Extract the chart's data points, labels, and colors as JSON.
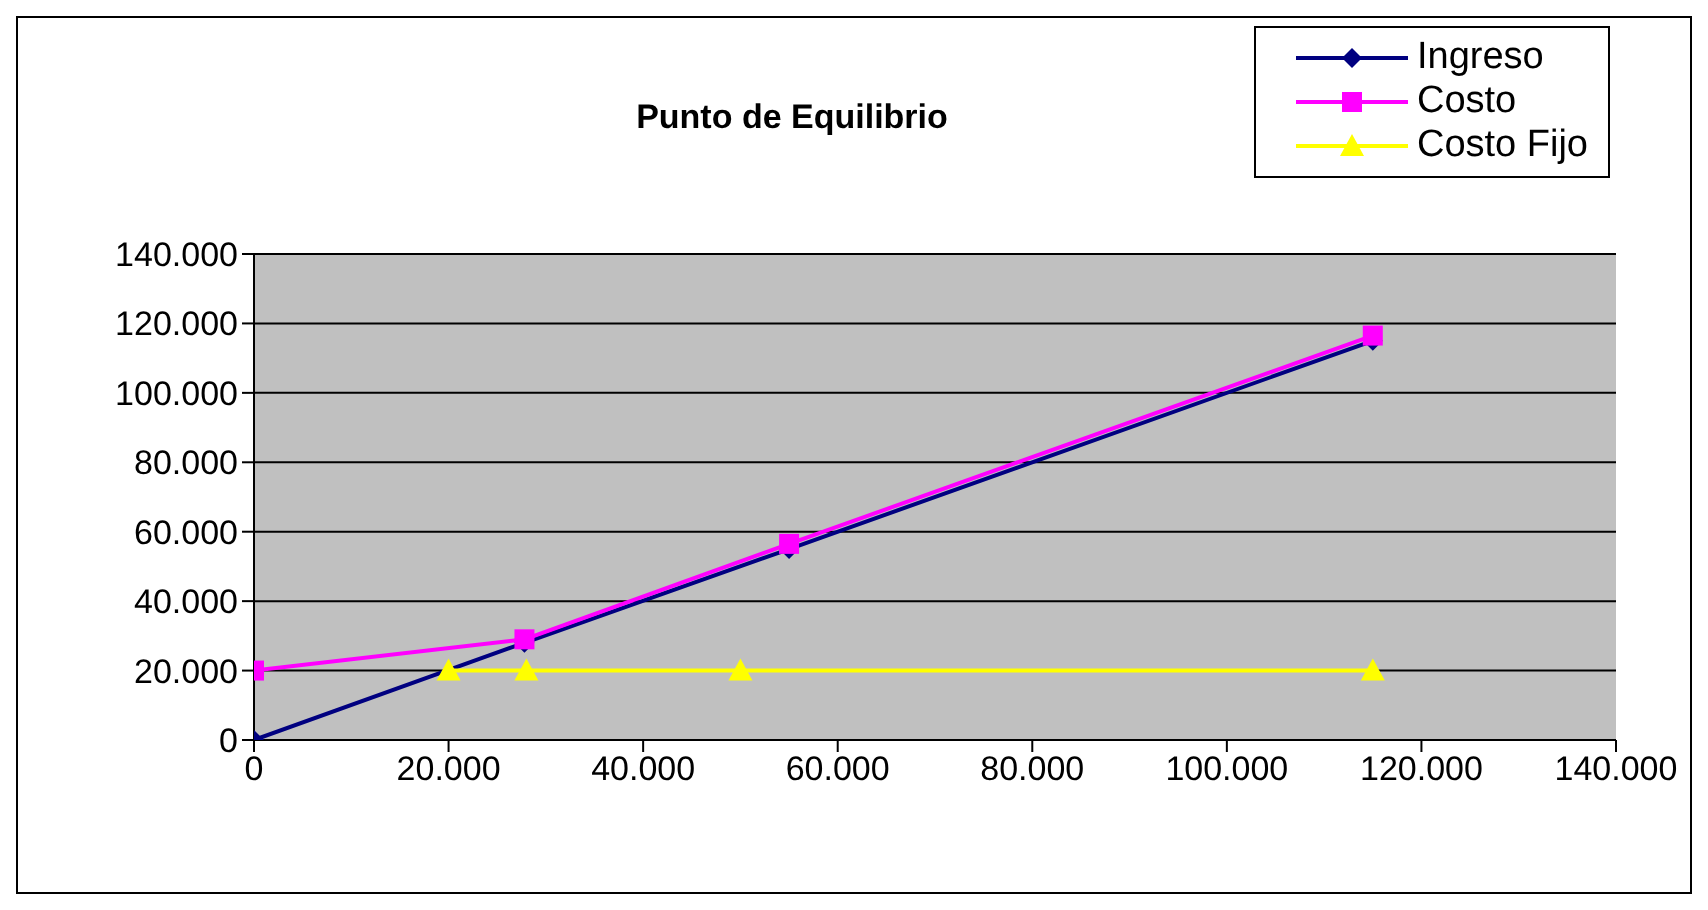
{
  "chart_data": {
    "type": "line",
    "title": "Punto de Equilibrio",
    "series": [
      {
        "name": "Ingreso",
        "color": "#000080",
        "marker": "diamond",
        "x": [
          0,
          27800,
          55000,
          115000
        ],
        "values": [
          0,
          28000,
          55000,
          115000
        ]
      },
      {
        "name": "Costo",
        "color": "#ff00ff",
        "marker": "square",
        "x": [
          0,
          27800,
          55000,
          115000
        ],
        "values": [
          20000,
          29000,
          56500,
          116500
        ]
      },
      {
        "name": "Costo Fijo",
        "color": "#ffff00",
        "marker": "triangle",
        "x": [
          20000,
          28000,
          50000,
          115000
        ],
        "values": [
          20000,
          20000,
          20000,
          20000
        ]
      }
    ],
    "xlim": [
      0,
      140000
    ],
    "xticks": [
      {
        "value": 0,
        "label": "0"
      },
      {
        "value": 20000,
        "label": "20.000"
      },
      {
        "value": 40000,
        "label": "40.000"
      },
      {
        "value": 60000,
        "label": "60.000"
      },
      {
        "value": 80000,
        "label": "80.000"
      },
      {
        "value": 100000,
        "label": "100.000"
      },
      {
        "value": 120000,
        "label": "120.000"
      },
      {
        "value": 140000,
        "label": "140.000"
      }
    ],
    "ylim": [
      0,
      140000
    ],
    "yticks": [
      {
        "value": 0,
        "label": "0"
      },
      {
        "value": 20000,
        "label": "20.000"
      },
      {
        "value": 40000,
        "label": "40.000"
      },
      {
        "value": 60000,
        "label": "60.000"
      },
      {
        "value": 80000,
        "label": "80.000"
      },
      {
        "value": 100000,
        "label": "100.000"
      },
      {
        "value": 120000,
        "label": "120.000"
      },
      {
        "value": 140000,
        "label": "140.000"
      }
    ],
    "grid": "y",
    "legend": "top right"
  }
}
